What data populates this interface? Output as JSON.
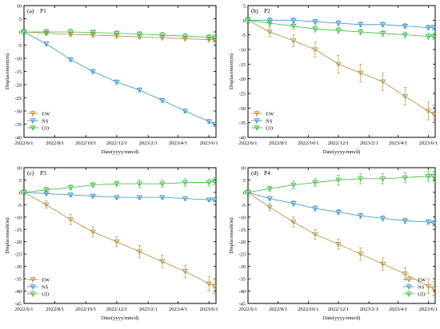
{
  "chart_data": [
    {
      "panel": "(a)",
      "title": "P1",
      "type": "line",
      "xlabel": "Date(yyyy/mm/d)",
      "ylabel": "Displacement(m)",
      "xticks": [
        "2022/6/1",
        "2022/8/1",
        "2022/10/1",
        "2022/12/1",
        "2023/2/1",
        "2023/4/1",
        "2023/6/1"
      ],
      "xrange": [
        "2022-06-01",
        "2023-06-15"
      ],
      "ylim": [
        -40,
        10
      ],
      "yticks": [
        10,
        5,
        0,
        -5,
        -10,
        -15,
        -20,
        -25,
        -30,
        -35,
        -40
      ],
      "legend_position": "bottom-left",
      "series": [
        {
          "name": "EW",
          "color": "#b08a3a",
          "marker": "triangle-down",
          "x": [
            "2022-06-01",
            "2022-07-15",
            "2022-09-01",
            "2022-10-15",
            "2022-12-01",
            "2023-01-15",
            "2023-03-01",
            "2023-04-15",
            "2023-06-01",
            "2023-06-12"
          ],
          "y": [
            0,
            -0.5,
            -0.9,
            -1.2,
            -1.5,
            -1.9,
            -2.2,
            -2.6,
            -2.9,
            -3.0
          ],
          "err": [
            0.8,
            0.8,
            0.8,
            0.8,
            0.8,
            0.8,
            0.8,
            0.8,
            0.8,
            0.8
          ]
        },
        {
          "name": "NS",
          "color": "#3b8fc8",
          "marker": "triangle-down",
          "x": [
            "2022-06-01",
            "2022-07-15",
            "2022-09-01",
            "2022-10-15",
            "2022-12-01",
            "2023-01-15",
            "2023-03-01",
            "2023-04-15",
            "2023-06-01",
            "2023-06-12"
          ],
          "y": [
            0,
            -4.5,
            -10.5,
            -15,
            -19,
            -22,
            -26,
            -30,
            -34,
            -35
          ],
          "err": [
            0.8,
            0.8,
            0.8,
            0.8,
            0.8,
            0.8,
            0.8,
            0.8,
            0.8,
            0.8
          ]
        },
        {
          "name": "UD",
          "color": "#3cb83c",
          "marker": "triangle-down",
          "x": [
            "2022-06-01",
            "2022-07-15",
            "2022-09-01",
            "2022-10-15",
            "2022-12-01",
            "2023-01-15",
            "2023-03-01",
            "2023-04-15",
            "2023-06-01",
            "2023-06-12"
          ],
          "y": [
            0,
            0,
            0,
            -0.2,
            -0.5,
            -0.8,
            -1.2,
            -1.6,
            -2.0,
            -2.2
          ],
          "err": [
            1,
            1,
            1,
            1,
            1,
            1,
            1,
            1,
            1,
            1
          ]
        }
      ]
    },
    {
      "panel": "(b)",
      "title": "P2",
      "type": "line",
      "xlabel": "Date(yyyy/mm/d)",
      "ylabel": "Displacement(m)",
      "xticks": [
        "2022/6/1",
        "2022/8/1",
        "2022/10/1",
        "2022/12/1",
        "2023/2/1",
        "2023/4/1",
        "2023/6/1"
      ],
      "xrange": [
        "2022-06-01",
        "2023-06-15"
      ],
      "ylim": [
        -40,
        5
      ],
      "yticks": [
        5,
        0,
        -5,
        -10,
        -15,
        -20,
        -25,
        -30,
        -35,
        -40
      ],
      "legend_position": "bottom-left",
      "series": [
        {
          "name": "EW",
          "color": "#b08a3a",
          "marker": "triangle-down",
          "x": [
            "2022-06-01",
            "2022-07-15",
            "2022-09-01",
            "2022-10-15",
            "2022-12-01",
            "2023-01-15",
            "2023-03-01",
            "2023-04-15",
            "2023-06-01",
            "2023-06-12"
          ],
          "y": [
            0,
            -4,
            -7,
            -10,
            -15,
            -18,
            -21,
            -26,
            -31,
            -32
          ],
          "err": [
            1,
            1.5,
            2,
            2.5,
            3,
            3,
            3,
            3,
            3,
            3
          ]
        },
        {
          "name": "NS",
          "color": "#3b8fc8",
          "marker": "triangle-down",
          "x": [
            "2022-06-01",
            "2022-07-15",
            "2022-09-01",
            "2022-10-15",
            "2022-12-01",
            "2023-01-15",
            "2023-03-01",
            "2023-04-15",
            "2023-06-01",
            "2023-06-12"
          ],
          "y": [
            0,
            0,
            0,
            -0.5,
            -1,
            -1.5,
            -1.5,
            -2,
            -2.5,
            -2.5
          ],
          "err": [
            0.8,
            0.8,
            0.8,
            0.8,
            0.8,
            0.8,
            0.8,
            0.8,
            0.8,
            0.8
          ]
        },
        {
          "name": "UD",
          "color": "#3cb83c",
          "marker": "triangle-down",
          "x": [
            "2022-06-01",
            "2022-07-15",
            "2022-09-01",
            "2022-10-15",
            "2022-12-01",
            "2023-01-15",
            "2023-03-01",
            "2023-04-15",
            "2023-06-01",
            "2023-06-12"
          ],
          "y": [
            0,
            -1,
            -2,
            -3,
            -3.5,
            -4,
            -4.5,
            -5,
            -5.5,
            -5.5
          ],
          "err": [
            1,
            1,
            1,
            1,
            1,
            1,
            1,
            1,
            1,
            1
          ]
        }
      ]
    },
    {
      "panel": "(c)",
      "title": "P3",
      "type": "line",
      "xlabel": "Date(yyyy/mm/d)",
      "ylabel": "Displacement(m)",
      "xticks": [
        "2022/6/1",
        "2022/8/1",
        "2022/10/1",
        "2022/12/1",
        "2023/2/1",
        "2023/4/1",
        "2023/6/1"
      ],
      "xrange": [
        "2022-06-01",
        "2023-06-15"
      ],
      "ylim": [
        -45,
        10
      ],
      "yticks": [
        10,
        5,
        0,
        -5,
        -10,
        -15,
        -20,
        -25,
        -30,
        -35,
        -40,
        -45
      ],
      "legend_position": "bottom-left",
      "series": [
        {
          "name": "EW",
          "color": "#b08a3a",
          "marker": "triangle-down",
          "x": [
            "2022-06-01",
            "2022-07-15",
            "2022-09-01",
            "2022-10-15",
            "2022-12-01",
            "2023-01-15",
            "2023-03-01",
            "2023-04-15",
            "2023-06-01",
            "2023-06-12"
          ],
          "y": [
            0,
            -5,
            -11,
            -16,
            -20,
            -24,
            -28,
            -32,
            -37,
            -38
          ],
          "err": [
            1,
            1.5,
            2,
            2,
            2,
            2.5,
            2.5,
            2.5,
            3,
            3
          ]
        },
        {
          "name": "NS",
          "color": "#3b8fc8",
          "marker": "triangle-down",
          "x": [
            "2022-06-01",
            "2022-07-15",
            "2022-09-01",
            "2022-10-15",
            "2022-12-01",
            "2023-01-15",
            "2023-03-01",
            "2023-04-15",
            "2023-06-01",
            "2023-06-12"
          ],
          "y": [
            0,
            -0.5,
            -1,
            -1.5,
            -2,
            -2,
            -2,
            -2.5,
            -3,
            -3
          ],
          "err": [
            0.8,
            0.8,
            0.8,
            0.8,
            0.8,
            0.8,
            0.8,
            0.8,
            0.8,
            0.8
          ]
        },
        {
          "name": "UD",
          "color": "#3cb83c",
          "marker": "triangle-down",
          "x": [
            "2022-06-01",
            "2022-07-15",
            "2022-09-01",
            "2022-10-15",
            "2022-12-01",
            "2023-01-15",
            "2023-03-01",
            "2023-04-15",
            "2023-06-01",
            "2023-06-12"
          ],
          "y": [
            0,
            1,
            2,
            3,
            3.5,
            3.5,
            3.5,
            4,
            4,
            4.5
          ],
          "err": [
            1,
            1,
            1,
            1,
            1,
            1.5,
            1.5,
            1.5,
            1.5,
            1.5
          ]
        }
      ]
    },
    {
      "panel": "(d)",
      "title": "P4",
      "type": "line",
      "xlabel": "Date(yyyy/mm/d)",
      "ylabel": "Displacement(m)",
      "xticks": [
        "2022/6/1",
        "2022/8/1",
        "2022/10/1",
        "2022/12/1",
        "2023/2/1",
        "2023/4/1",
        "2023/6/1"
      ],
      "xrange": [
        "2022-06-01",
        "2023-06-15"
      ],
      "ylim": [
        -45,
        10
      ],
      "yticks": [
        10,
        5,
        0,
        -5,
        -10,
        -15,
        -20,
        -25,
        -30,
        -35,
        -40,
        -45
      ],
      "legend_position": "bottom-right",
      "series": [
        {
          "name": "EW",
          "color": "#b08a3a",
          "marker": "triangle-down",
          "x": [
            "2022-06-01",
            "2022-07-15",
            "2022-09-01",
            "2022-10-15",
            "2022-12-01",
            "2023-01-15",
            "2023-03-01",
            "2023-04-15",
            "2023-06-01",
            "2023-06-12"
          ],
          "y": [
            0,
            -6,
            -12,
            -17,
            -21,
            -25,
            -29,
            -33,
            -38,
            -39
          ],
          "err": [
            1,
            1.5,
            2,
            2,
            2,
            2.5,
            2.5,
            2.5,
            3,
            3
          ]
        },
        {
          "name": "NS",
          "color": "#3b8fc8",
          "marker": "triangle-down",
          "x": [
            "2022-06-01",
            "2022-07-15",
            "2022-09-01",
            "2022-10-15",
            "2022-12-01",
            "2023-01-15",
            "2023-03-01",
            "2023-04-15",
            "2023-06-01",
            "2023-06-12"
          ],
          "y": [
            0,
            -2.5,
            -4.5,
            -6.5,
            -8,
            -9.5,
            -10.5,
            -11.5,
            -12,
            -12.5
          ],
          "err": [
            0.8,
            0.8,
            1,
            1,
            1,
            1,
            1,
            1,
            1,
            1
          ]
        },
        {
          "name": "UD",
          "color": "#3cb83c",
          "marker": "triangle-down",
          "x": [
            "2022-06-01",
            "2022-07-15",
            "2022-09-01",
            "2022-10-15",
            "2022-12-01",
            "2023-01-15",
            "2023-03-01",
            "2023-04-15",
            "2023-06-01",
            "2023-06-12"
          ],
          "y": [
            0,
            1.5,
            3,
            4,
            5,
            5.5,
            5.5,
            6,
            6.5,
            6.5
          ],
          "err": [
            1,
            1,
            1.5,
            1.5,
            2,
            2,
            2,
            2,
            2,
            2
          ]
        }
      ]
    }
  ]
}
